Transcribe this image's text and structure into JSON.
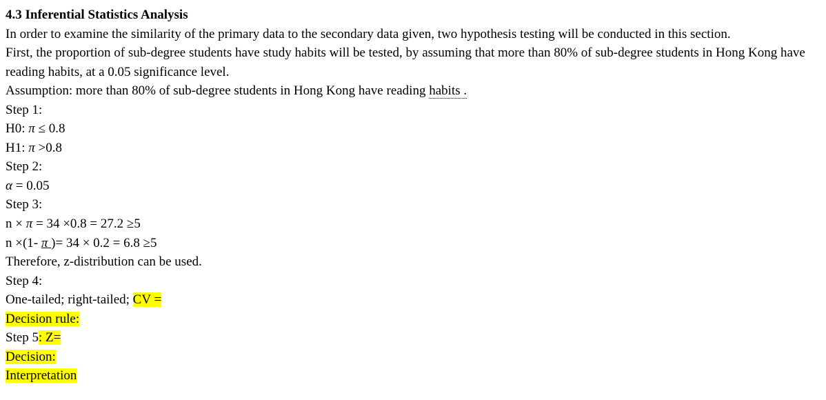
{
  "doc": {
    "heading": "4.3 Inferential Statistics Analysis",
    "intro1": "In order to examine the similarity of the primary data to the secondary data given, two hypothesis testing will be conducted in this section.",
    "intro2a": "First, the proportion of sub-degree students have study habits will be tested, by assuming that more than 80% of sub-degree students in Hong Kong have reading habits, at a 0.05 significance level.",
    "assumption_pre": "Assumption: more than 80% of sub-degree students in Hong Kong have reading ",
    "assumption_u": "habits .",
    "step1": "Step 1:",
    "h0_label": "H0:  ",
    "h0_sym": "π",
    "h0_tail": " ≤ 0.8",
    "h1_label": "H1:  ",
    "h1_sym": "π",
    "h1_tail": " >0.8",
    "step2": "Step 2:",
    "alpha_sym": "α",
    "alpha_tail": " = 0.05",
    "step3": "Step 3:",
    "npi_a_pre": "n × ",
    "npi_a_sym": "π",
    "npi_a_tail": " = 34 ×0.8 = 27.2 ≥5",
    "npi_b_pre": "n ×(1- ",
    "npi_b_sym_u": "π ",
    "npi_b_tail": ")= 34 × 0.2 = 6.8  ≥5",
    "zdist": "Therefore, z-distribution can be used.",
    "step4": "Step 4:",
    "s4_pre": "One-tailed; right-tailed; ",
    "s4_hl": "CV =",
    "dec_rule_hl": "Decision rule:",
    "step5_pre": "Step 5",
    "step5_hl": ": Z=",
    "decision_hl": "Decision:",
    "interp_hl": "Interpretation",
    "highlight_color": "#ffff00",
    "background_color": "#ffffff",
    "text_color": "#000000",
    "font_family": "Times New Roman",
    "font_size_pt": 14
  }
}
